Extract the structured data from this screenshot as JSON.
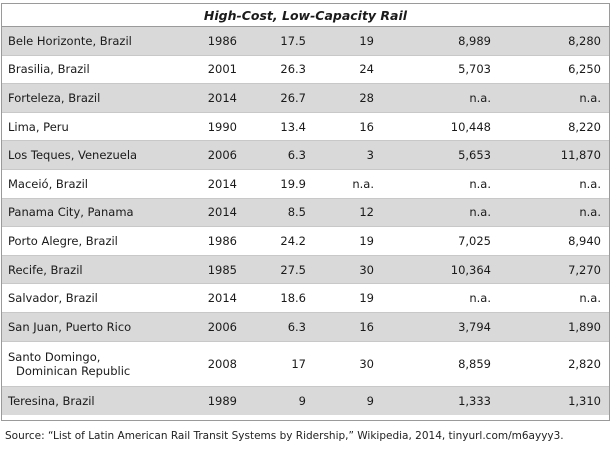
{
  "table": {
    "title": "High-Cost, Low-Capacity Rail",
    "rows": [
      {
        "city": "Bele Horizonte, Brazil",
        "year": "1986",
        "cost": "17.5",
        "length": "19",
        "pop": "8,989",
        "gdp": "8,280"
      },
      {
        "city": "Brasilia, Brazil",
        "year": "2001",
        "cost": "26.3",
        "length": "24",
        "pop": "5,703",
        "gdp": "6,250"
      },
      {
        "city": "Forteleza, Brazil",
        "year": "2014",
        "cost": "26.7",
        "length": "28",
        "pop": "n.a.",
        "gdp": "n.a."
      },
      {
        "city": "Lima, Peru",
        "year": "1990",
        "cost": "13.4",
        "length": "16",
        "pop": "10,448",
        "gdp": "8,220"
      },
      {
        "city": "Los Teques, Venezuela",
        "year": "2006",
        "cost": "6.3",
        "length": "3",
        "pop": "5,653",
        "gdp": "11,870"
      },
      {
        "city": "Maceió, Brazil",
        "year": "2014",
        "cost": "19.9",
        "length": "n.a.",
        "pop": "n.a.",
        "gdp": "n.a."
      },
      {
        "city": "Panama City, Panama",
        "year": "2014",
        "cost": "8.5",
        "length": "12",
        "pop": "n.a.",
        "gdp": "n.a."
      },
      {
        "city": "Porto Alegre, Brazil",
        "year": "1986",
        "cost": "24.2",
        "length": "19",
        "pop": "7,025",
        "gdp": "8,940"
      },
      {
        "city": "Recife, Brazil",
        "year": "1985",
        "cost": "27.5",
        "length": "30",
        "pop": "10,364",
        "gdp": "7,270"
      },
      {
        "city": "Salvador, Brazil",
        "year": "2014",
        "cost": "18.6",
        "length": "19",
        "pop": "n.a.",
        "gdp": "n.a."
      },
      {
        "city": "San Juan, Puerto Rico",
        "year": "2006",
        "cost": "6.3",
        "length": "16",
        "pop": "3,794",
        "gdp": "1,890"
      },
      {
        "city": "Santo Domingo,",
        "city_line2": "Dominican Republic",
        "year": "2008",
        "cost": "17",
        "length": "30",
        "pop": "8,859",
        "gdp": "2,820"
      },
      {
        "city": "Teresina, Brazil",
        "year": "1989",
        "cost": "9",
        "length": "9",
        "pop": "1,333",
        "gdp": "1,310"
      }
    ]
  },
  "source": "Source: “List of Latin American Rail Transit Systems by Ridership,” Wikipedia, 2014, tinyurl.com/m6ayyy3.",
  "colors": {
    "shade": "#d9d9d9",
    "border": "#9a9a9a"
  }
}
